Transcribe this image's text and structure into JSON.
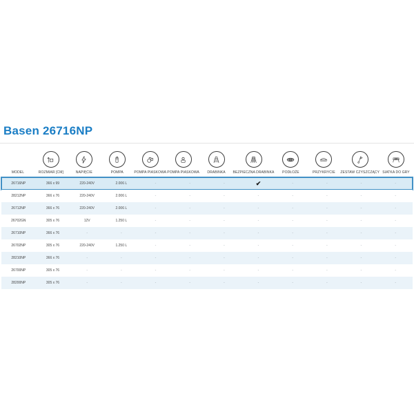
{
  "page": {
    "title": "Basen 26716NP"
  },
  "colors": {
    "title_blue": "#1b7ec5",
    "highlight_border": "#4090c5",
    "highlight_row_bg": "#d9ebf5",
    "alt_row_bg": "#eaf3f9",
    "divider": "#e3e3e3",
    "icon_stroke": "#3c3c3c",
    "cell_text": "#4a4a4a",
    "dash": "#9aa4ab",
    "check": "#1c1c1c"
  },
  "table": {
    "columns": [
      {
        "label": "MODEL",
        "icon": null
      },
      {
        "label": "ROZMIAR [CM]",
        "icon": "ruler-icon"
      },
      {
        "label": "NAPIĘCIE",
        "icon": "lightning-icon"
      },
      {
        "label": "POMPA",
        "icon": "pump-icon"
      },
      {
        "label": "POMPA PIASKOWA",
        "icon": "sand-pump-icon"
      },
      {
        "label": "POMPA PIASKOWA",
        "icon": "sand-pump-2-icon"
      },
      {
        "label": "DRABINKA",
        "icon": "ladder-icon"
      },
      {
        "label": "BEZPIECZNA DRABINKA",
        "icon": "safety-ladder-icon"
      },
      {
        "label": "PODŁOŻE",
        "icon": "ground-cloth-icon"
      },
      {
        "label": "PRZYKRYCIE",
        "icon": "pool-cover-icon"
      },
      {
        "label": "ZESTAW CZYSZCZĄCY",
        "icon": "cleaning-kit-icon"
      },
      {
        "label": "SIATKA DO GRY",
        "icon": "game-net-icon"
      }
    ],
    "rows": [
      {
        "model": "26716NP",
        "highlighted": true,
        "values": [
          "366 x 99",
          "220-240V",
          "2.006 L",
          "-",
          "-",
          "-",
          "✔",
          "-",
          "-",
          "-",
          "-"
        ]
      },
      {
        "model": "28212NP",
        "highlighted": false,
        "values": [
          "366 x 76",
          "220-240V",
          "2.006 L",
          "-",
          "-",
          "-",
          "-",
          "-",
          "-",
          "-",
          "-"
        ]
      },
      {
        "model": "26712NP",
        "highlighted": false,
        "values": [
          "366 x 76",
          "220-240V",
          "2.006 L",
          "-",
          "-",
          "-",
          "-",
          "-",
          "-",
          "-",
          "-"
        ]
      },
      {
        "model": "26702GN",
        "highlighted": false,
        "values": [
          "305 x 76",
          "12V",
          "1.250 L",
          "-",
          "-",
          "-",
          "-",
          "-",
          "-",
          "-",
          "-"
        ]
      },
      {
        "model": "26710NP",
        "highlighted": false,
        "values": [
          "366 x 76",
          "-",
          "-",
          "-",
          "-",
          "-",
          "-",
          "-",
          "-",
          "-",
          "-"
        ]
      },
      {
        "model": "26702NP",
        "highlighted": false,
        "values": [
          "305 x 76",
          "220-240V",
          "1.250 L",
          "-",
          "-",
          "-",
          "-",
          "-",
          "-",
          "-",
          "-"
        ]
      },
      {
        "model": "28210NP",
        "highlighted": false,
        "values": [
          "366 x 76",
          "-",
          "-",
          "-",
          "-",
          "-",
          "-",
          "-",
          "-",
          "-",
          "-"
        ]
      },
      {
        "model": "26700NP",
        "highlighted": false,
        "values": [
          "305 x 76",
          "-",
          "-",
          "-",
          "-",
          "-",
          "-",
          "-",
          "-",
          "-",
          "-"
        ]
      },
      {
        "model": "28200NP",
        "highlighted": false,
        "values": [
          "305 x 76",
          "-",
          "-",
          "-",
          "-",
          "-",
          "-",
          "-",
          "-",
          "-",
          "-"
        ]
      }
    ]
  }
}
